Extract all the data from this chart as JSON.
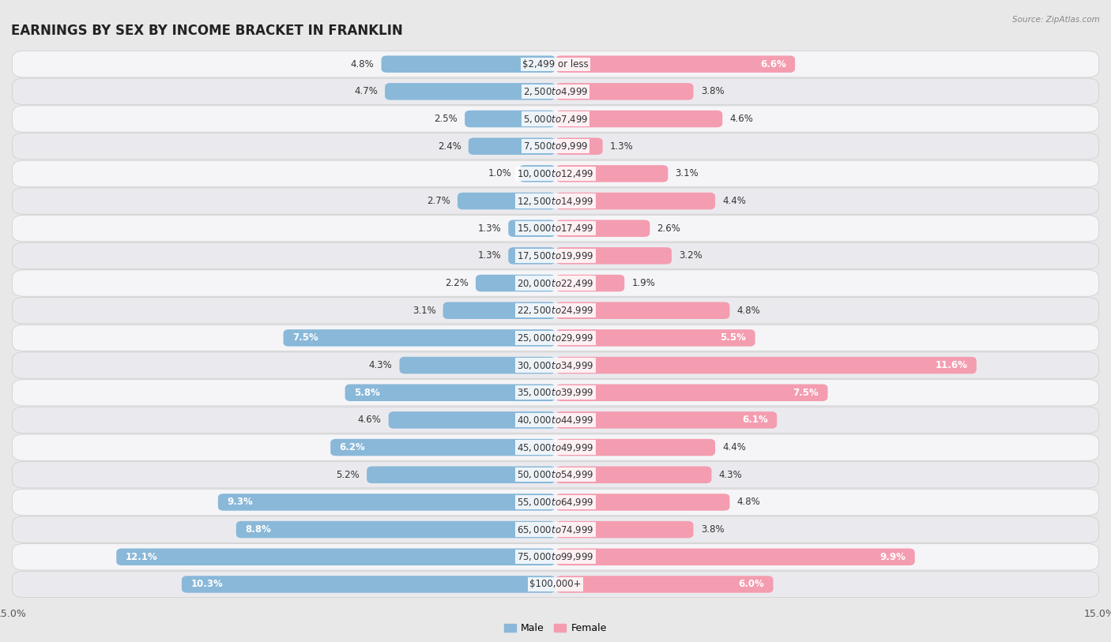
{
  "title": "EARNINGS BY SEX BY INCOME BRACKET IN FRANKLIN",
  "source": "Source: ZipAtlas.com",
  "categories": [
    "$2,499 or less",
    "$2,500 to $4,999",
    "$5,000 to $7,499",
    "$7,500 to $9,999",
    "$10,000 to $12,499",
    "$12,500 to $14,999",
    "$15,000 to $17,499",
    "$17,500 to $19,999",
    "$20,000 to $22,499",
    "$22,500 to $24,999",
    "$25,000 to $29,999",
    "$30,000 to $34,999",
    "$35,000 to $39,999",
    "$40,000 to $44,999",
    "$45,000 to $49,999",
    "$50,000 to $54,999",
    "$55,000 to $64,999",
    "$65,000 to $74,999",
    "$75,000 to $99,999",
    "$100,000+"
  ],
  "male_values": [
    4.8,
    4.7,
    2.5,
    2.4,
    1.0,
    2.7,
    1.3,
    1.3,
    2.2,
    3.1,
    7.5,
    4.3,
    5.8,
    4.6,
    6.2,
    5.2,
    9.3,
    8.8,
    12.1,
    10.3
  ],
  "female_values": [
    6.6,
    3.8,
    4.6,
    1.3,
    3.1,
    4.4,
    2.6,
    3.2,
    1.9,
    4.8,
    5.5,
    11.6,
    7.5,
    6.1,
    4.4,
    4.3,
    4.8,
    3.8,
    9.9,
    6.0
  ],
  "male_color": "#89b8d9",
  "female_color": "#f49db0",
  "background_color": "#e8e8e8",
  "row_color_light": "#f5f5f8",
  "row_color_dark": "#eaeaee",
  "xlim": 15.0,
  "bar_height": 0.62,
  "title_fontsize": 12,
  "label_fontsize": 8.5,
  "category_fontsize": 8.5,
  "white_label_threshold": 5.5
}
